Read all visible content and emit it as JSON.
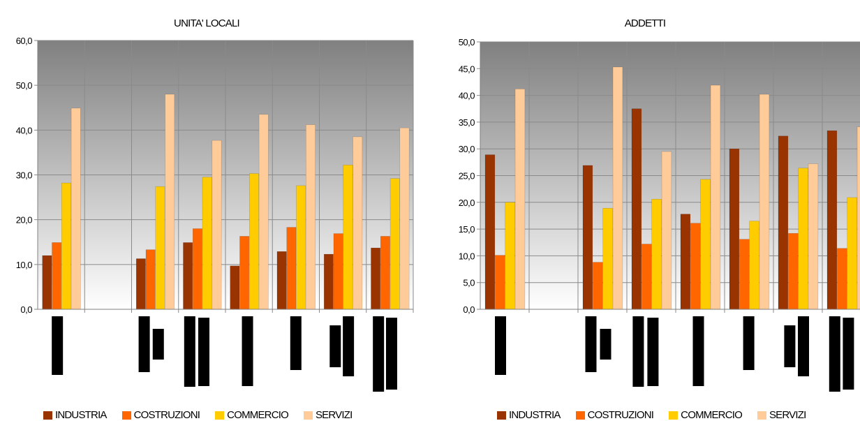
{
  "colors": {
    "INDUSTRIA": "#993300",
    "COSTRUZIONI": "#ff6600",
    "COMMERCIO": "#ffcc00",
    "SERVIZI": "#ffcc99",
    "plot_top": "#808080",
    "plot_bottom": "#ffffff",
    "grid": "#8a8a8a"
  },
  "chart_data": [
    {
      "type": "bar",
      "title": "UNITA' LOCALI",
      "xlabel": "",
      "ylabel": "",
      "ylim": [
        0,
        60
      ],
      "yticks": [
        "0,0",
        "10,0",
        "20,0",
        "30,0",
        "40,0",
        "50,0",
        "60,0"
      ],
      "ytick_values": [
        0,
        10,
        20,
        30,
        40,
        50,
        60
      ],
      "grid": true,
      "legend": "bottom",
      "categories": [
        "",
        "",
        "",
        "",
        "",
        "",
        "",
        ""
      ],
      "series": [
        {
          "name": "INDUSTRIA",
          "values": [
            12.0,
            null,
            11.3,
            14.9,
            9.7,
            12.9,
            12.3,
            13.7
          ]
        },
        {
          "name": "COSTRUZIONI",
          "values": [
            14.9,
            null,
            13.3,
            18.0,
            16.3,
            18.3,
            16.9,
            16.3
          ]
        },
        {
          "name": "COMMERCIO",
          "values": [
            28.2,
            null,
            27.4,
            29.5,
            30.3,
            27.6,
            32.2,
            29.2
          ]
        },
        {
          "name": "SERVIZI",
          "values": [
            44.9,
            null,
            48.0,
            37.7,
            43.5,
            41.2,
            38.5,
            40.5
          ]
        }
      ]
    },
    {
      "type": "bar",
      "title": "ADDETTI",
      "xlabel": "",
      "ylabel": "",
      "ylim": [
        0,
        50
      ],
      "yticks": [
        "0,0",
        "5,0",
        "10,0",
        "15,0",
        "20,0",
        "25,0",
        "30,0",
        "35,0",
        "40,0",
        "45,0",
        "50,0"
      ],
      "ytick_values": [
        0,
        5,
        10,
        15,
        20,
        25,
        30,
        35,
        40,
        45,
        50
      ],
      "grid": true,
      "legend": "bottom",
      "categories": [
        "",
        "",
        "",
        "",
        "",
        "",
        "",
        ""
      ],
      "series": [
        {
          "name": "INDUSTRIA",
          "values": [
            28.9,
            null,
            26.9,
            37.5,
            17.8,
            30.0,
            32.4,
            33.4
          ]
        },
        {
          "name": "COSTRUZIONI",
          "values": [
            10.1,
            null,
            8.8,
            12.2,
            16.1,
            13.1,
            14.2,
            11.4
          ]
        },
        {
          "name": "COMMERCIO",
          "values": [
            20.0,
            null,
            18.9,
            20.6,
            24.3,
            16.5,
            26.4,
            20.9
          ]
        },
        {
          "name": "SERVIZI",
          "values": [
            41.2,
            null,
            45.3,
            29.5,
            41.9,
            40.2,
            27.2,
            34.1
          ]
        }
      ]
    }
  ]
}
